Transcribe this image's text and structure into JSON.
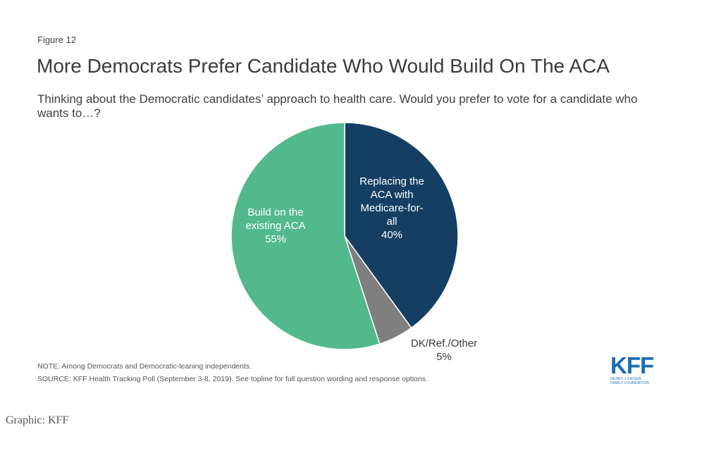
{
  "figure_label": "Figure 12",
  "chart_data": {
    "type": "pie",
    "title": "More Democrats Prefer Candidate Who Would Build On The ACA",
    "subtitle": "Thinking about the Democratic candidates’ approach to health care. Would you prefer to vote for a candidate who wants to…?",
    "slices": [
      {
        "name": "Replacing the ACA with Medicare-for-all",
        "value": 40,
        "label_lines": [
          "Replacing the",
          "ACA with",
          "Medicare-for-",
          "all",
          "40%"
        ],
        "color": "#143f63",
        "text_color": "#ffffff"
      },
      {
        "name": "DK/Ref./Other",
        "value": 5,
        "label_lines": [
          "DK/Ref./Other",
          "5%"
        ],
        "color": "#7f7f7f",
        "text_color": "#3a3a3a"
      },
      {
        "name": "Build on the existing ACA",
        "value": 55,
        "label_lines": [
          "Build on the",
          "existing ACA",
          "55%"
        ],
        "color": "#52b98d",
        "text_color": "#ffffff"
      }
    ]
  },
  "note": "NOTE: Among Democrats and Democratic-leaning independents.",
  "source": "SOURCE: KFF Health Tracking Poll (September 3-8, 2019). See topline for full question wording and response options.",
  "logo": {
    "mark": "KFF",
    "line1": "HENRY J KAISER",
    "line2": "FAMILY FOUNDATION"
  },
  "caption": "Graphic: KFF"
}
